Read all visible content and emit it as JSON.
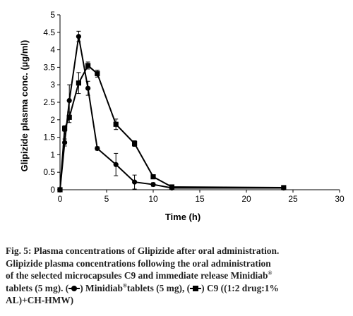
{
  "chart_data": {
    "type": "line",
    "xlabel": "Time (h)",
    "ylabel": "Glipizide plasma conc.  (µg/ml)",
    "xlim": [
      0,
      30
    ],
    "ylim": [
      0,
      5
    ],
    "xticks": [
      0,
      5,
      10,
      15,
      20,
      25,
      30
    ],
    "yticks": [
      0,
      0.5,
      1,
      1.5,
      2,
      2.5,
      3,
      3.5,
      4,
      4.5,
      5
    ],
    "ytick_labels": [
      "0",
      "0.5",
      "1",
      "1.5",
      "2",
      "2.5",
      "3",
      "3.5",
      "4",
      "4.5",
      "5"
    ],
    "grid": false,
    "series": [
      {
        "marker": "circle",
        "x": [
          0,
          0.5,
          1,
          2,
          3,
          4,
          6,
          8,
          10,
          12,
          24
        ],
        "y": [
          0,
          1.35,
          2.55,
          4.38,
          2.9,
          1.18,
          0.72,
          0.22,
          0.15,
          0.05,
          0.05
        ],
        "err": [
          0,
          0.1,
          0.45,
          0.15,
          0.2,
          0.05,
          0.32,
          0.2,
          0.05,
          0.02,
          0.02
        ]
      },
      {
        "marker": "square",
        "x": [
          0,
          0.5,
          1,
          2,
          3,
          4,
          6,
          8,
          10,
          12,
          24
        ],
        "y": [
          0,
          1.75,
          2.07,
          3.05,
          3.55,
          3.32,
          1.87,
          1.32,
          0.37,
          0.08,
          0.06
        ],
        "err": [
          0,
          0.08,
          0.15,
          0.3,
          0.1,
          0.1,
          0.15,
          0.08,
          0.05,
          0.02,
          0.02
        ]
      }
    ]
  },
  "caption": {
    "line1": "Fig. 5: Plasma concentrations of Glipizide after oral administration.",
    "line2": "Glipizide plasma concentrations following the oral administration",
    "line3a": "of the selected microcapsules C9 and immediate release Minidiab",
    "reg_mark": "®",
    "line4a": "tablets (5 mg). (",
    "line4b": ")  Minidiab",
    "line4c": "tablets (5 mg), (",
    "line4d": ") C9 ((1:2 drug:1%",
    "line5": "AL)+CH-HMW)"
  }
}
